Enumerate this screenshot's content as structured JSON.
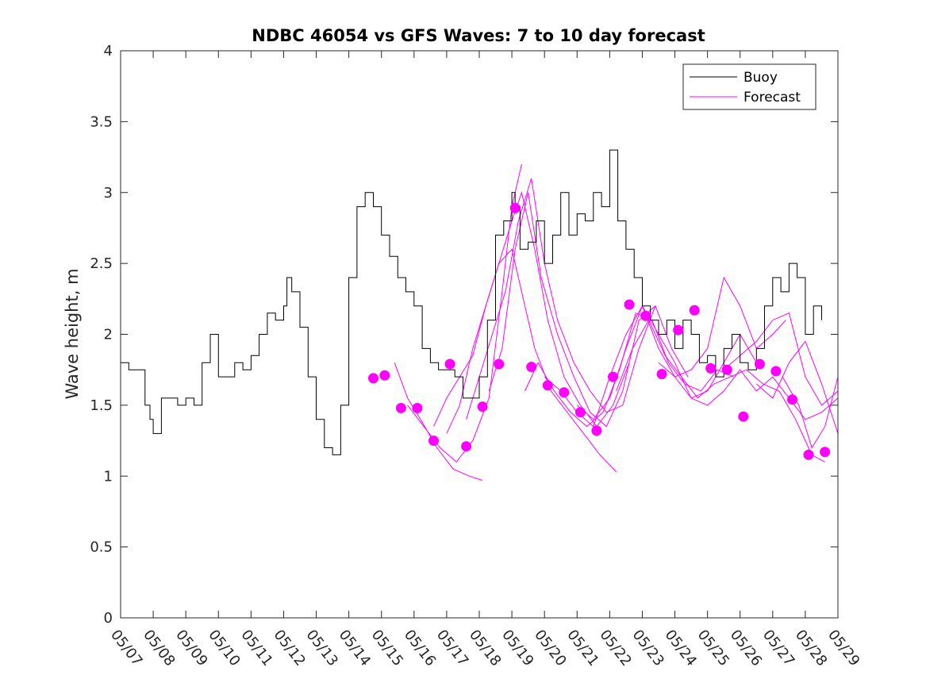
{
  "chart_data": {
    "type": "line",
    "title": "NDBC 46054 vs GFS Waves: 7 to 10 day forecast",
    "xlabel": "",
    "ylabel": "Wave height, m",
    "ylim": [
      0,
      4
    ],
    "xlim": [
      0,
      22
    ],
    "grid": false,
    "legend_location": "top-right",
    "y_ticks": [
      0,
      0.5,
      1,
      1.5,
      2,
      2.5,
      3,
      3.5,
      4
    ],
    "y_tick_labels": [
      "0",
      "0.5",
      "1",
      "1.5",
      "2",
      "2.5",
      "3",
      "3.5",
      "4"
    ],
    "x_ticks": [
      0,
      1,
      2,
      3,
      4,
      5,
      6,
      7,
      8,
      9,
      10,
      11,
      12,
      13,
      14,
      15,
      16,
      17,
      18,
      19,
      20,
      21,
      22
    ],
    "x_tick_labels": [
      "05/07",
      "05/08",
      "05/09",
      "05/10",
      "05/11",
      "05/12",
      "05/13",
      "05/14",
      "05/15",
      "05/16",
      "05/17",
      "05/18",
      "05/19",
      "05/20",
      "05/21",
      "05/22",
      "05/23",
      "05/24",
      "05/25",
      "05/26",
      "05/27",
      "05/28",
      "05/29"
    ],
    "x_units": "days since 05/07",
    "series": [
      {
        "name": "Buoy",
        "color": "#000000",
        "x": [
          0.0,
          0.25,
          0.5,
          0.75,
          0.9,
          1.0,
          1.25,
          1.5,
          1.75,
          2.0,
          2.25,
          2.5,
          2.75,
          3.0,
          3.25,
          3.5,
          3.75,
          4.0,
          4.25,
          4.5,
          4.75,
          5.0,
          5.1,
          5.25,
          5.5,
          5.75,
          6.0,
          6.25,
          6.5,
          6.75,
          7.0,
          7.25,
          7.5,
          7.75,
          8.0,
          8.25,
          8.5,
          8.75,
          9.0,
          9.25,
          9.5,
          9.75,
          10.0,
          10.25,
          10.5,
          10.75,
          11.0,
          11.25,
          11.5,
          11.75,
          12.0,
          12.1,
          12.25,
          12.5,
          12.75,
          13.0,
          13.25,
          13.5,
          13.75,
          14.0,
          14.25,
          14.5,
          14.75,
          15.0,
          15.25,
          15.5,
          15.75,
          16.0,
          16.25,
          16.5,
          16.75,
          17.0,
          17.25,
          17.5,
          17.75,
          18.0,
          18.25,
          18.5,
          18.75,
          19.0,
          19.25,
          19.5,
          19.75,
          20.0,
          20.25,
          20.5,
          20.75,
          21.0,
          21.25,
          21.5
        ],
        "y": [
          1.8,
          1.75,
          1.75,
          1.5,
          1.4,
          1.3,
          1.55,
          1.55,
          1.5,
          1.55,
          1.5,
          1.8,
          2.0,
          1.7,
          1.7,
          1.8,
          1.75,
          1.85,
          2.0,
          2.15,
          2.1,
          2.2,
          2.4,
          2.3,
          2.05,
          1.7,
          1.4,
          1.2,
          1.15,
          1.5,
          2.4,
          2.9,
          3.0,
          2.9,
          2.7,
          2.55,
          2.4,
          2.3,
          2.2,
          1.9,
          1.8,
          1.75,
          1.75,
          1.7,
          1.55,
          1.55,
          1.7,
          2.1,
          2.7,
          2.8,
          3.0,
          2.9,
          2.6,
          2.65,
          2.8,
          2.5,
          2.7,
          3.0,
          2.7,
          2.85,
          2.8,
          3.0,
          2.9,
          3.3,
          2.8,
          2.6,
          2.4,
          2.2,
          2.1,
          2.0,
          2.1,
          1.9,
          2.1,
          2.0,
          1.8,
          1.85,
          1.7,
          1.9,
          2.0,
          1.8,
          1.75,
          1.9,
          2.2,
          2.4,
          2.3,
          2.5,
          2.4,
          2.0,
          2.2,
          2.1
        ]
      },
      {
        "name": "Forecast",
        "color": "#ff00ff",
        "marker_points": {
          "x": [
            7.75,
            8.1,
            8.6,
            9.1,
            9.6,
            10.1,
            10.6,
            11.1,
            11.6,
            12.1,
            12.6,
            13.1,
            13.6,
            14.1,
            14.6,
            15.1,
            15.6,
            16.1,
            16.6,
            17.1,
            17.6,
            18.1,
            18.6,
            19.1,
            19.6,
            20.1,
            20.6,
            21.1,
            21.6
          ],
          "y": [
            1.69,
            1.71,
            1.48,
            1.48,
            1.25,
            1.79,
            1.21,
            1.49,
            1.79,
            2.89,
            1.77,
            1.64,
            1.59,
            1.45,
            1.32,
            1.7,
            2.21,
            2.13,
            1.72,
            2.03,
            2.17,
            1.76,
            1.75,
            1.42,
            1.79,
            1.74,
            1.54,
            1.15,
            1.17
          ]
        },
        "runs": [
          {
            "x": [
              8.4,
              8.8,
              9.2,
              9.7,
              10.2,
              10.7,
              11.1
            ],
            "y": [
              1.8,
              1.55,
              1.4,
              1.2,
              1.05,
              1.0,
              0.97
            ]
          },
          {
            "x": [
              8.8,
              9.3,
              9.8,
              10.3,
              10.8,
              11.3,
              11.7,
              12.0,
              12.3
            ],
            "y": [
              1.5,
              1.35,
              1.2,
              1.1,
              1.25,
              1.55,
              2.3,
              2.9,
              3.2
            ]
          },
          {
            "x": [
              9.6,
              10.0,
              10.4,
              10.8,
              11.2,
              11.6,
              12.0,
              12.3,
              12.7,
              13.2,
              13.7,
              14.2,
              14.7,
              15.2
            ],
            "y": [
              1.35,
              1.55,
              1.7,
              1.85,
              2.2,
              2.5,
              2.6,
              2.3,
              1.9,
              1.6,
              1.45,
              1.3,
              1.15,
              1.03
            ]
          },
          {
            "x": [
              10.0,
              10.4,
              10.8,
              11.2,
              11.6,
              12.0,
              12.3,
              12.7,
              13.1,
              13.6,
              14.1,
              14.6,
              15.1,
              15.6
            ],
            "y": [
              1.3,
              1.5,
              1.9,
              2.2,
              2.5,
              2.8,
              3.0,
              2.6,
              2.1,
              1.7,
              1.5,
              1.35,
              1.5,
              1.8
            ]
          },
          {
            "x": [
              10.6,
              11.0,
              11.4,
              11.8,
              12.2,
              12.6,
              13.0,
              13.4,
              13.9,
              14.4,
              14.9,
              15.4,
              15.9,
              16.4
            ],
            "y": [
              1.4,
              1.7,
              2.0,
              2.3,
              2.8,
              3.1,
              2.5,
              2.1,
              1.8,
              1.6,
              1.45,
              1.5,
              1.9,
              2.2
            ]
          },
          {
            "x": [
              11.3,
              11.7,
              12.1,
              12.5,
              12.9,
              13.4,
              13.9,
              14.4,
              14.9,
              15.4,
              15.9,
              16.4,
              16.9,
              17.4
            ],
            "y": [
              1.6,
              1.9,
              2.6,
              3.0,
              2.4,
              2.0,
              1.7,
              1.45,
              1.35,
              1.6,
              2.1,
              2.2,
              1.9,
              1.7
            ]
          },
          {
            "x": [
              12.4,
              12.8,
              13.3,
              13.8,
              14.3,
              14.8,
              15.3,
              15.8,
              16.3,
              16.8,
              17.3,
              17.8,
              18.3,
              18.8
            ],
            "y": [
              1.6,
              1.8,
              1.6,
              1.45,
              1.35,
              1.45,
              1.75,
              2.15,
              2.1,
              1.8,
              1.65,
              1.6,
              1.75,
              1.7
            ]
          },
          {
            "x": [
              13.0,
              13.5,
              14.0,
              14.5,
              15.0,
              15.5,
              16.0,
              16.5,
              17.0,
              17.5,
              18.0,
              18.5,
              19.0,
              19.5
            ],
            "y": [
              1.7,
              1.6,
              1.45,
              1.35,
              1.7,
              2.0,
              2.2,
              2.0,
              1.8,
              1.55,
              1.6,
              1.8,
              2.0,
              1.8
            ]
          },
          {
            "x": [
              14.0,
              14.5,
              15.0,
              15.5,
              16.0,
              16.5,
              17.0,
              17.5,
              18.0,
              18.5,
              19.0,
              19.5,
              20.0,
              20.4
            ],
            "y": [
              1.5,
              1.4,
              1.55,
              1.9,
              2.2,
              1.9,
              1.7,
              1.75,
              1.9,
              2.4,
              2.2,
              1.9,
              2.0,
              2.1
            ]
          },
          {
            "x": [
              15.2,
              15.7,
              16.2,
              16.7,
              17.2,
              17.7,
              18.2,
              18.7,
              19.2,
              19.7,
              20.2,
              20.7,
              21.2,
              21.6
            ],
            "y": [
              1.6,
              1.9,
              2.1,
              1.85,
              1.7,
              1.55,
              1.65,
              1.7,
              1.75,
              1.65,
              1.6,
              1.4,
              1.15,
              1.1
            ]
          },
          {
            "x": [
              16.5,
              17.0,
              17.5,
              18.0,
              18.5,
              19.0,
              19.5,
              20.0,
              20.5,
              21.0,
              21.5,
              22.0
            ],
            "y": [
              1.8,
              1.7,
              1.55,
              1.5,
              1.6,
              1.75,
              1.6,
              1.7,
              1.55,
              1.4,
              1.45,
              1.55
            ]
          },
          {
            "x": [
              18.5,
              19.0,
              19.5,
              20.0,
              20.5,
              21.0,
              21.5,
              22.0
            ],
            "y": [
              1.75,
              1.85,
              1.95,
              2.1,
              2.15,
              1.7,
              1.5,
              1.6
            ]
          },
          {
            "x": [
              19.5,
              20.0,
              20.5,
              21.0,
              21.5,
              22.0
            ],
            "y": [
              1.65,
              1.55,
              1.8,
              1.95,
              1.65,
              1.3
            ]
          },
          {
            "x": [
              20.3,
              20.8,
              21.2,
              21.6,
              22.0
            ],
            "y": [
              1.7,
              1.5,
              1.2,
              1.35,
              1.7
            ]
          }
        ]
      }
    ]
  }
}
